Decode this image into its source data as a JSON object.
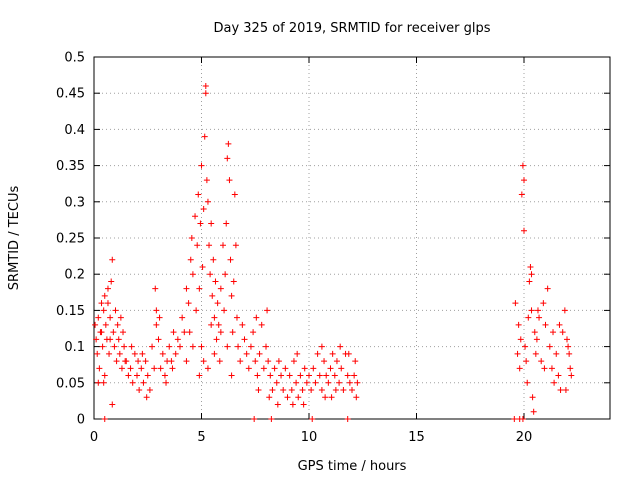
{
  "chart_data": {
    "type": "scatter",
    "title": "Day 325 of 2019, SRMTID for receiver glps",
    "xlabel": "GPS time / hours",
    "ylabel": "SRMTID / TECUs",
    "xlim": [
      0,
      24
    ],
    "ylim": [
      0,
      0.5
    ],
    "xticks": [
      0,
      5,
      10,
      15,
      20
    ],
    "xtick_labels": [
      "0",
      "5",
      "10",
      "15",
      "20"
    ],
    "yticks": [
      0,
      0.05,
      0.1,
      0.15,
      0.2,
      0.25,
      0.3,
      0.35,
      0.4,
      0.45,
      0.5
    ],
    "ytick_labels": [
      "0",
      "0.05",
      "0.1",
      "0.15",
      "0.2",
      "0.25",
      "0.3",
      "0.35",
      "0.4",
      "0.45",
      "0.5"
    ],
    "grid": true,
    "marker": "+",
    "color": "#ff0000",
    "series": [
      {
        "name": "SRMTID",
        "points": [
          [
            0.05,
            0.13
          ],
          [
            0.1,
            0.11
          ],
          [
            0.15,
            0.09
          ],
          [
            0.2,
            0.14
          ],
          [
            0.25,
            0.07
          ],
          [
            0.3,
            0.12
          ],
          [
            0.35,
            0.16
          ],
          [
            0.4,
            0.1
          ],
          [
            0.45,
            0.15
          ],
          [
            0.5,
            0.06
          ],
          [
            0.5,
            0.17
          ],
          [
            0.55,
            0.13
          ],
          [
            0.6,
            0.11
          ],
          [
            0.65,
            0.16
          ],
          [
            0.7,
            0.09
          ],
          [
            0.75,
            0.14
          ],
          [
            0.8,
            0.19
          ],
          [
            0.85,
            0.22
          ],
          [
            0.9,
            0.12
          ],
          [
            0.95,
            0.1
          ],
          [
            1.0,
            0.15
          ],
          [
            1.05,
            0.08
          ],
          [
            1.1,
            0.13
          ],
          [
            1.15,
            0.11
          ],
          [
            1.2,
            0.09
          ],
          [
            1.25,
            0.14
          ],
          [
            1.3,
            0.07
          ],
          [
            1.35,
            0.12
          ],
          [
            1.4,
            0.1
          ],
          [
            1.45,
            0.08
          ],
          [
            0.2,
            0.05
          ],
          [
            0.45,
            0.05
          ],
          [
            0.85,
            0.02
          ],
          [
            0.5,
            0.0
          ],
          [
            0.35,
            0.12
          ],
          [
            0.65,
            0.18
          ],
          [
            0.75,
            0.11
          ],
          [
            1.5,
            0.08
          ],
          [
            1.6,
            0.06
          ],
          [
            1.7,
            0.07
          ],
          [
            1.8,
            0.05
          ],
          [
            1.9,
            0.09
          ],
          [
            2.0,
            0.06
          ],
          [
            2.1,
            0.04
          ],
          [
            2.2,
            0.07
          ],
          [
            2.3,
            0.05
          ],
          [
            2.4,
            0.08
          ],
          [
            2.5,
            0.06
          ],
          [
            2.6,
            0.04
          ],
          [
            2.7,
            0.1
          ],
          [
            2.8,
            0.07
          ],
          [
            2.85,
            0.18
          ],
          [
            2.9,
            0.13
          ],
          [
            3.0,
            0.11
          ],
          [
            3.1,
            0.07
          ],
          [
            3.2,
            0.09
          ],
          [
            3.3,
            0.06
          ],
          [
            3.4,
            0.08
          ],
          [
            3.5,
            0.1
          ],
          [
            3.6,
            0.08
          ],
          [
            3.7,
            0.12
          ],
          [
            3.8,
            0.09
          ],
          [
            3.9,
            0.11
          ],
          [
            2.05,
            0.08
          ],
          [
            2.45,
            0.03
          ],
          [
            2.9,
            0.15
          ],
          [
            1.75,
            0.1
          ],
          [
            2.25,
            0.09
          ],
          [
            3.05,
            0.14
          ],
          [
            3.35,
            0.05
          ],
          [
            3.65,
            0.07
          ],
          [
            4.0,
            0.1
          ],
          [
            4.1,
            0.14
          ],
          [
            4.2,
            0.12
          ],
          [
            4.3,
            0.18
          ],
          [
            4.4,
            0.16
          ],
          [
            4.5,
            0.22
          ],
          [
            4.55,
            0.25
          ],
          [
            4.6,
            0.2
          ],
          [
            4.7,
            0.28
          ],
          [
            4.8,
            0.24
          ],
          [
            4.85,
            0.31
          ],
          [
            4.9,
            0.18
          ],
          [
            4.95,
            0.27
          ],
          [
            5.0,
            0.35
          ],
          [
            5.05,
            0.21
          ],
          [
            5.1,
            0.29
          ],
          [
            5.15,
            0.39
          ],
          [
            5.2,
            0.46
          ],
          [
            5.2,
            0.45
          ],
          [
            5.25,
            0.33
          ],
          [
            5.3,
            0.3
          ],
          [
            5.35,
            0.24
          ],
          [
            5.4,
            0.2
          ],
          [
            5.45,
            0.27
          ],
          [
            5.5,
            0.17
          ],
          [
            5.55,
            0.22
          ],
          [
            5.6,
            0.14
          ],
          [
            5.65,
            0.19
          ],
          [
            5.7,
            0.11
          ],
          [
            5.75,
            0.16
          ],
          [
            5.8,
            0.13
          ],
          [
            5.9,
            0.18
          ],
          [
            6.0,
            0.24
          ],
          [
            6.05,
            0.15
          ],
          [
            6.1,
            0.2
          ],
          [
            6.15,
            0.27
          ],
          [
            6.2,
            0.36
          ],
          [
            6.25,
            0.38
          ],
          [
            6.3,
            0.33
          ],
          [
            6.35,
            0.22
          ],
          [
            6.4,
            0.17
          ],
          [
            6.45,
            0.12
          ],
          [
            6.5,
            0.19
          ],
          [
            6.55,
            0.31
          ],
          [
            6.6,
            0.24
          ],
          [
            6.65,
            0.14
          ],
          [
            6.7,
            0.1
          ],
          [
            6.8,
            0.08
          ],
          [
            6.9,
            0.13
          ],
          [
            4.3,
            0.08
          ],
          [
            4.6,
            0.1
          ],
          [
            4.9,
            0.06
          ],
          [
            5.1,
            0.08
          ],
          [
            5.3,
            0.07
          ],
          [
            5.6,
            0.09
          ],
          [
            5.9,
            0.12
          ],
          [
            6.2,
            0.1
          ],
          [
            4.45,
            0.12
          ],
          [
            4.75,
            0.15
          ],
          [
            5.0,
            0.1
          ],
          [
            5.45,
            0.13
          ],
          [
            5.85,
            0.08
          ],
          [
            6.4,
            0.06
          ],
          [
            7.0,
            0.11
          ],
          [
            7.1,
            0.09
          ],
          [
            7.2,
            0.07
          ],
          [
            7.3,
            0.1
          ],
          [
            7.4,
            0.12
          ],
          [
            7.5,
            0.08
          ],
          [
            7.55,
            0.14
          ],
          [
            7.6,
            0.06
          ],
          [
            7.7,
            0.09
          ],
          [
            7.8,
            0.13
          ],
          [
            7.9,
            0.07
          ],
          [
            8.0,
            0.1
          ],
          [
            8.05,
            0.15
          ],
          [
            8.1,
            0.08
          ],
          [
            8.2,
            0.06
          ],
          [
            8.3,
            0.04
          ],
          [
            8.4,
            0.07
          ],
          [
            8.5,
            0.05
          ],
          [
            8.6,
            0.08
          ],
          [
            8.7,
            0.06
          ],
          [
            8.8,
            0.04
          ],
          [
            8.9,
            0.07
          ],
          [
            9.0,
            0.03
          ],
          [
            9.1,
            0.06
          ],
          [
            9.2,
            0.04
          ],
          [
            9.3,
            0.08
          ],
          [
            9.4,
            0.05
          ],
          [
            9.5,
            0.03
          ],
          [
            9.6,
            0.06
          ],
          [
            9.7,
            0.04
          ],
          [
            9.8,
            0.07
          ],
          [
            9.9,
            0.05
          ],
          [
            7.45,
            0.0
          ],
          [
            8.25,
            0.0
          ],
          [
            7.65,
            0.04
          ],
          [
            8.15,
            0.03
          ],
          [
            8.55,
            0.02
          ],
          [
            9.25,
            0.02
          ],
          [
            9.45,
            0.09
          ],
          [
            9.75,
            0.02
          ],
          [
            10.0,
            0.06
          ],
          [
            10.1,
            0.04
          ],
          [
            10.2,
            0.07
          ],
          [
            10.3,
            0.05
          ],
          [
            10.4,
            0.09
          ],
          [
            10.5,
            0.06
          ],
          [
            10.6,
            0.04
          ],
          [
            10.7,
            0.08
          ],
          [
            10.8,
            0.06
          ],
          [
            10.9,
            0.05
          ],
          [
            11.0,
            0.07
          ],
          [
            11.1,
            0.09
          ],
          [
            11.2,
            0.06
          ],
          [
            11.3,
            0.08
          ],
          [
            11.4,
            0.05
          ],
          [
            11.5,
            0.07
          ],
          [
            11.6,
            0.04
          ],
          [
            11.7,
            0.09
          ],
          [
            11.8,
            0.06
          ],
          [
            11.9,
            0.05
          ],
          [
            12.0,
            0.04
          ],
          [
            12.1,
            0.06
          ],
          [
            12.2,
            0.03
          ],
          [
            12.25,
            0.05
          ],
          [
            10.15,
            0.0
          ],
          [
            10.6,
            0.1
          ],
          [
            11.05,
            0.03
          ],
          [
            11.45,
            0.1
          ],
          [
            11.85,
            0.09
          ],
          [
            10.75,
            0.03
          ],
          [
            11.25,
            0.04
          ],
          [
            12.15,
            0.08
          ],
          [
            11.8,
            0.0
          ],
          [
            19.6,
            0.16
          ],
          [
            19.7,
            0.09
          ],
          [
            19.75,
            0.13
          ],
          [
            19.8,
            0.07
          ],
          [
            19.85,
            0.11
          ],
          [
            19.9,
            0.31
          ],
          [
            19.95,
            0.35
          ],
          [
            20.0,
            0.33
          ],
          [
            20.0,
            0.26
          ],
          [
            20.05,
            0.1
          ],
          [
            20.1,
            0.08
          ],
          [
            20.15,
            0.05
          ],
          [
            20.2,
            0.14
          ],
          [
            20.25,
            0.19
          ],
          [
            20.3,
            0.21
          ],
          [
            20.35,
            0.15
          ],
          [
            20.4,
            0.03
          ],
          [
            20.45,
            0.01
          ],
          [
            20.5,
            0.12
          ],
          [
            20.55,
            0.09
          ],
          [
            20.6,
            0.11
          ],
          [
            20.7,
            0.14
          ],
          [
            20.8,
            0.08
          ],
          [
            20.9,
            0.16
          ],
          [
            21.0,
            0.13
          ],
          [
            21.1,
            0.18
          ],
          [
            21.2,
            0.1
          ],
          [
            21.3,
            0.07
          ],
          [
            21.4,
            0.05
          ],
          [
            21.5,
            0.09
          ],
          [
            21.6,
            0.06
          ],
          [
            21.7,
            0.04
          ],
          [
            21.8,
            0.12
          ],
          [
            21.9,
            0.15
          ],
          [
            22.0,
            0.11
          ],
          [
            22.1,
            0.09
          ],
          [
            22.15,
            0.07
          ],
          [
            22.2,
            0.06
          ],
          [
            19.55,
            0.0
          ],
          [
            19.8,
            0.0
          ],
          [
            19.95,
            0.0
          ],
          [
            20.35,
            0.2
          ],
          [
            20.65,
            0.15
          ],
          [
            20.95,
            0.07
          ],
          [
            21.35,
            0.12
          ],
          [
            21.65,
            0.13
          ],
          [
            21.95,
            0.04
          ],
          [
            22.05,
            0.1
          ]
        ]
      }
    ]
  }
}
